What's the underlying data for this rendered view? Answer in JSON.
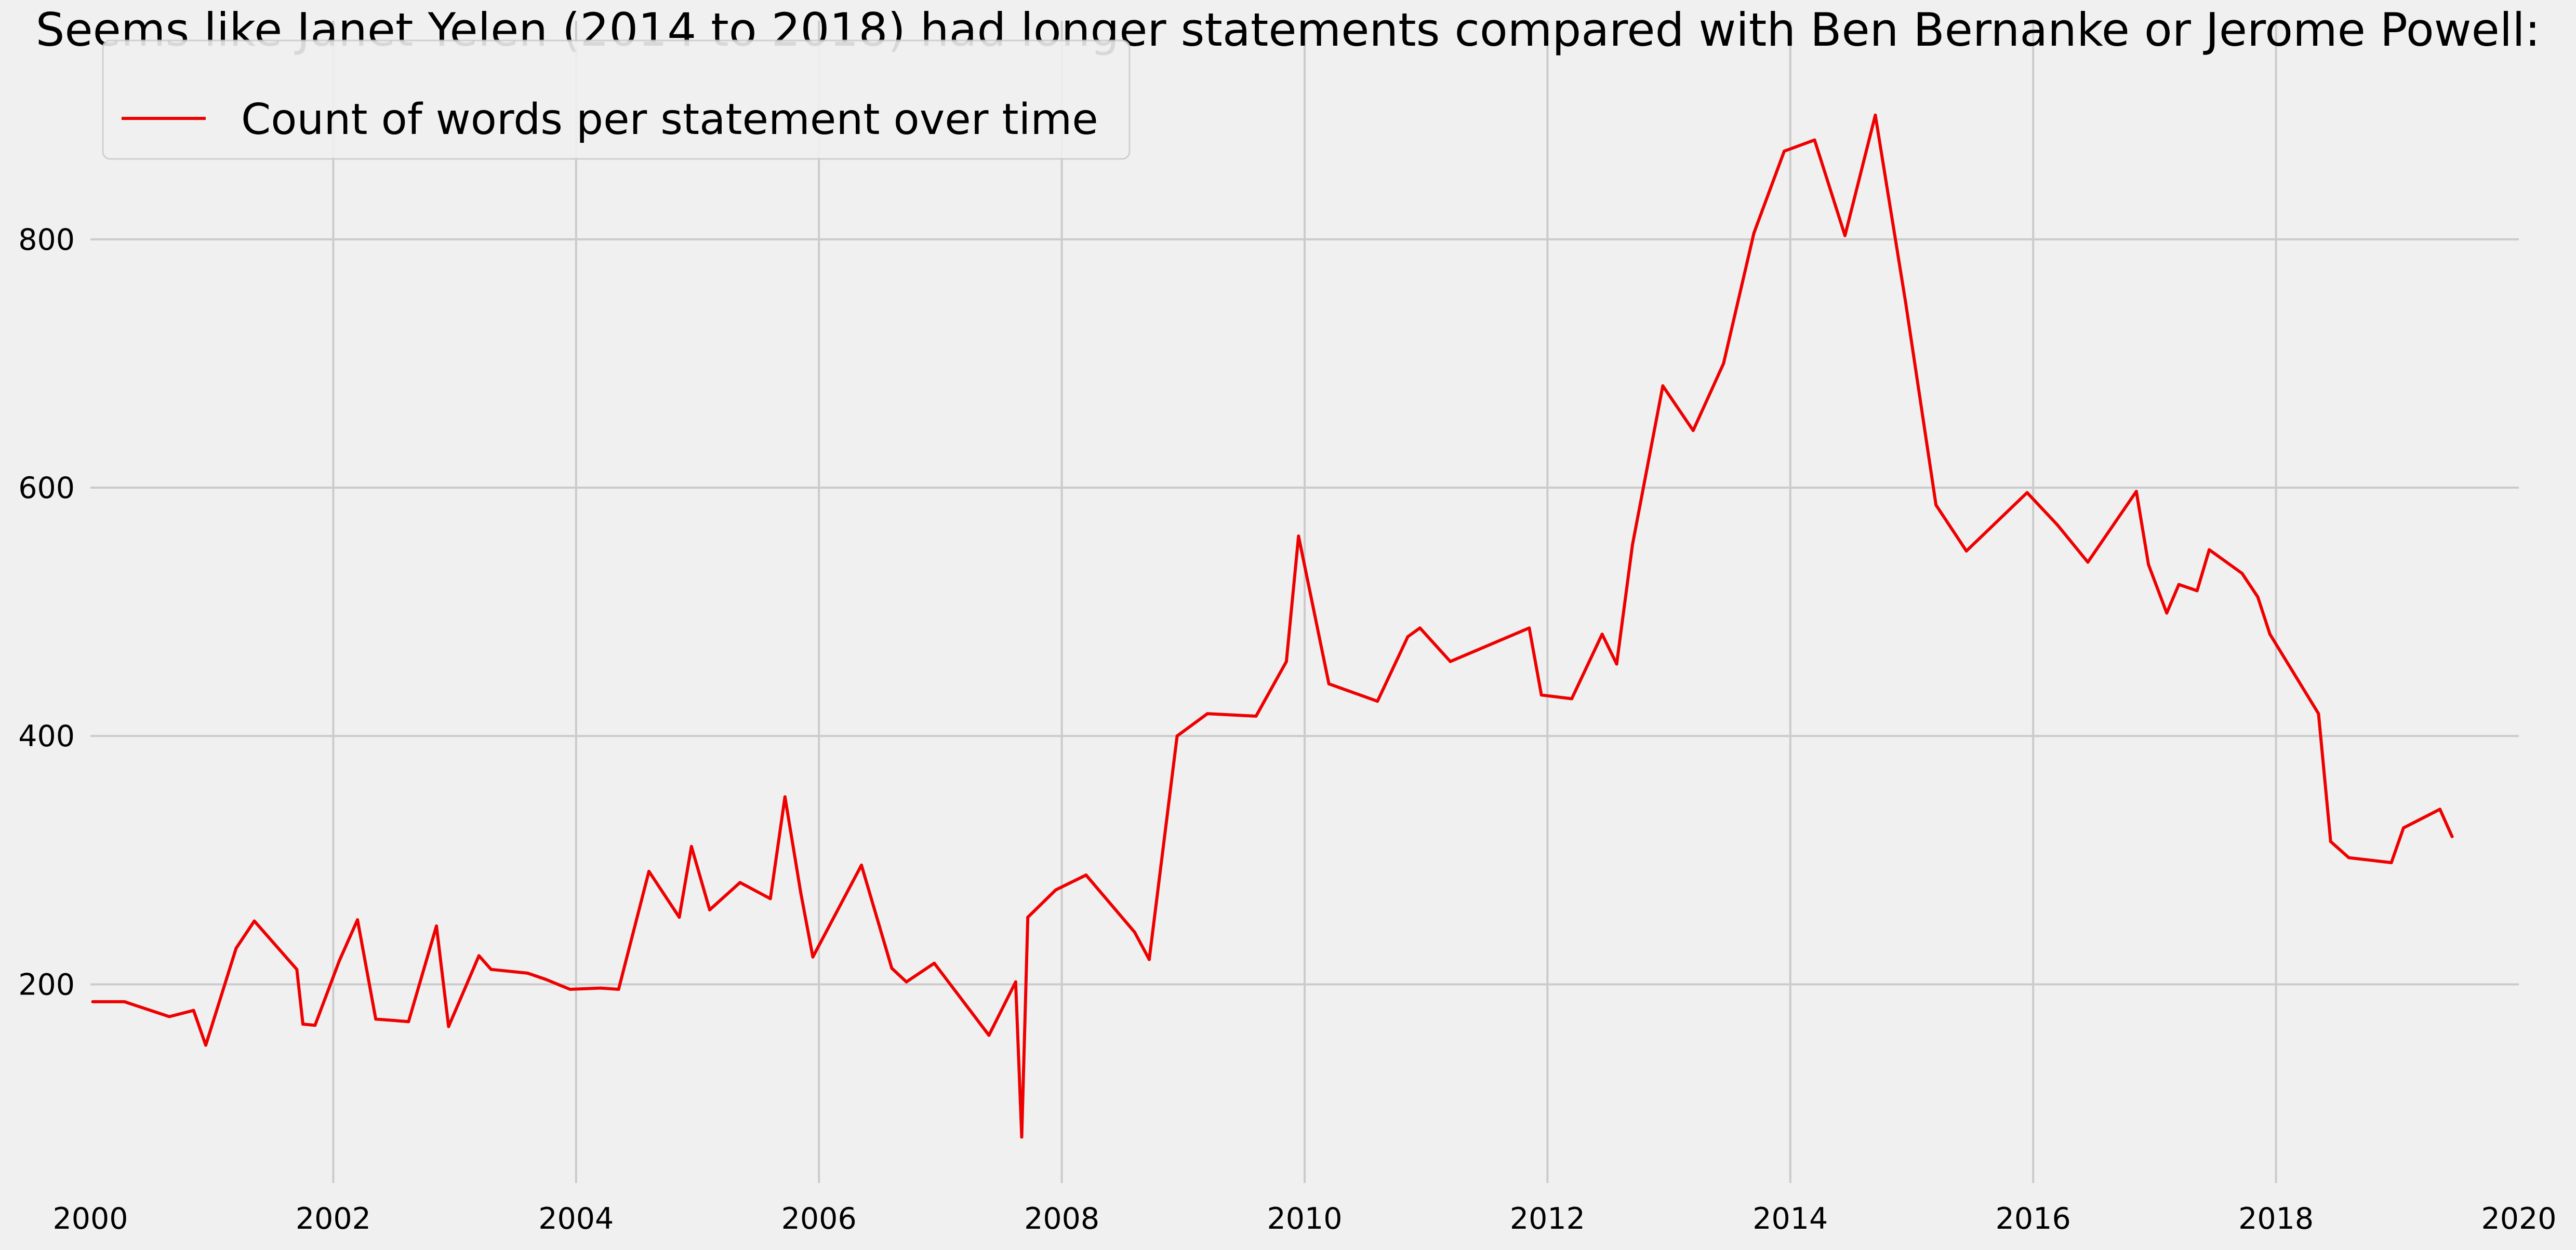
{
  "chart_data": {
    "type": "line",
    "title": "Seems like Janet Yelen (2014 to 2018) had longer statements compared with Ben Bernanke or Jerome Powell:",
    "xlabel": "",
    "ylabel": "",
    "xlim": [
      2000,
      2020
    ],
    "ylim": [
      40,
      930
    ],
    "x_ticks": [
      2000,
      2002,
      2004,
      2006,
      2008,
      2010,
      2012,
      2014,
      2016,
      2018,
      2020
    ],
    "x_tick_labels": [
      "2000",
      "2002",
      "2004",
      "2006",
      "2008",
      "2010",
      "2012",
      "2014",
      "2016",
      "2018",
      "2020"
    ],
    "y_ticks": [
      200,
      400,
      600,
      800
    ],
    "y_tick_labels": [
      "200",
      "400",
      "600",
      "800"
    ],
    "grid": true,
    "legend_position": "top-left",
    "series": [
      {
        "name": "Count of words per statement over time",
        "color": "#ee0000",
        "x": [
          2000.02,
          2000.28,
          2000.65,
          2000.85,
          2000.95,
          2001.2,
          2001.35,
          2001.7,
          2001.75,
          2001.85,
          2002.05,
          2002.2,
          2002.35,
          2002.62,
          2002.85,
          2002.95,
          2003.2,
          2003.3,
          2003.6,
          2003.75,
          2003.95,
          2004.2,
          2004.35,
          2004.6,
          2004.85,
          2004.95,
          2005.1,
          2005.35,
          2005.6,
          2005.72,
          2005.85,
          2005.95,
          2006.35,
          2006.6,
          2006.72,
          2006.95,
          2007.4,
          2007.62,
          2007.67,
          2007.72,
          2007.95,
          2008.2,
          2008.6,
          2008.72,
          2008.95,
          2009.2,
          2009.6,
          2009.85,
          2009.95,
          2010.2,
          2010.6,
          2010.85,
          2010.95,
          2011.2,
          2011.85,
          2011.95,
          2012.2,
          2012.45,
          2012.57,
          2012.7,
          2012.95,
          2013.2,
          2013.45,
          2013.7,
          2013.95,
          2014.2,
          2014.45,
          2014.7,
          2014.95,
          2015.2,
          2015.45,
          2015.95,
          2016.2,
          2016.45,
          2016.85,
          2016.95,
          2017.1,
          2017.2,
          2017.35,
          2017.45,
          2017.72,
          2017.85,
          2017.95,
          2018.35,
          2018.45,
          2018.6,
          2018.95,
          2019.05,
          2019.35,
          2019.45
        ],
        "y": [
          186,
          186,
          174,
          179,
          151,
          229,
          251,
          212,
          168,
          167,
          219,
          252,
          172,
          170,
          247,
          166,
          223,
          212,
          209,
          204,
          196,
          197,
          196,
          291,
          254,
          311,
          260,
          282,
          269,
          351,
          274,
          222,
          296,
          213,
          202,
          217,
          159,
          202,
          77,
          254,
          276,
          288,
          242,
          220,
          400,
          418,
          416,
          460,
          561,
          442,
          428,
          480,
          487,
          460,
          487,
          433,
          430,
          482,
          458,
          554,
          682,
          646,
          700,
          805,
          871,
          880,
          803,
          900,
          749,
          586,
          549,
          596,
          570,
          540,
          597,
          538,
          499,
          522,
          517,
          550,
          531,
          512,
          482,
          418,
          315,
          302,
          298,
          326,
          341,
          319
        ]
      }
    ]
  }
}
